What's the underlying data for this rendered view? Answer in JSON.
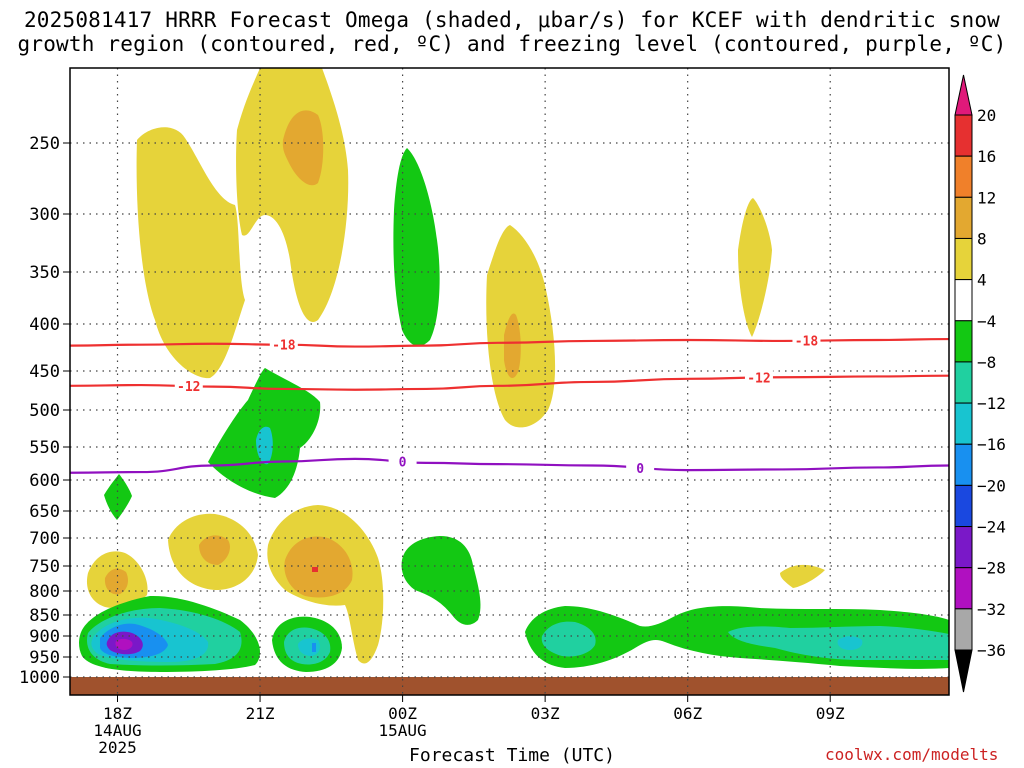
{
  "title": {
    "line1": "2025081417 HRRR Forecast Omega (shaded, μbar/s) for KCEF with dendritic snow",
    "line2": "growth region (contoured, red, ºC) and freezing level (contoured, purple, ºC)"
  },
  "credit": "coolwx.com/modelts",
  "chart_data": {
    "type": "heatmap",
    "xlabel": "Forecast Time (UTC)",
    "x_ticks": [
      {
        "label": "18Z",
        "sub1": "14AUG",
        "sub2": "2025",
        "hour": 0
      },
      {
        "label": "21Z",
        "sub1": "",
        "sub2": "",
        "hour": 3
      },
      {
        "label": "00Z",
        "sub1": "15AUG",
        "sub2": "",
        "hour": 6
      },
      {
        "label": "03Z",
        "sub1": "",
        "sub2": "",
        "hour": 9
      },
      {
        "label": "06Z",
        "sub1": "",
        "sub2": "",
        "hour": 12
      },
      {
        "label": "09Z",
        "sub1": "",
        "sub2": "",
        "hour": 15
      }
    ],
    "y_ticks": [
      250,
      300,
      350,
      400,
      450,
      500,
      550,
      600,
      650,
      700,
      750,
      800,
      850,
      900,
      950,
      1000
    ],
    "ylim": [
      200,
      1010
    ],
    "xlim": [
      -1,
      17.5
    ],
    "colorbar": {
      "labels": [
        "20",
        "16",
        "12",
        "8",
        "4",
        "−4",
        "−8",
        "−12",
        "−16",
        "−20",
        "−24",
        "−28",
        "−32",
        "−36"
      ],
      "colors": [
        "#e0197a",
        "#e63030",
        "#f0802a",
        "#e3a830",
        "#e6d33a",
        "#ffffff",
        "#13c813",
        "#20d0a0",
        "#18c4d0",
        "#1890f0",
        "#1a48e0",
        "#7a18c8",
        "#b010c0",
        "#a8a8a8",
        "#000000"
      ]
    },
    "contours": [
      {
        "label": "-18",
        "color": "#ee3030",
        "pressure": [
          423,
          422,
          421,
          422,
          424,
          423,
          420,
          418,
          417,
          418,
          417,
          416
        ]
      },
      {
        "label": "-12",
        "color": "#ee3030",
        "pressure": [
          469,
          468,
          470,
          473,
          474,
          473,
          469,
          464,
          460,
          458,
          457,
          456
        ]
      },
      {
        "label": "0",
        "color": "#9010c0",
        "pressure": [
          589,
          588,
          578,
          572,
          568,
          574,
          576,
          578,
          585,
          584,
          581,
          578
        ]
      }
    ],
    "contour_hours": [
      -1,
      0.5,
      2,
      3.5,
      5,
      6.5,
      8,
      10,
      12,
      14,
      16,
      17.5
    ],
    "omega_regions": [
      {
        "level": "4",
        "color": "#e6d33a"
      },
      {
        "level": "8",
        "color": "#e3a830"
      },
      {
        "level": "-4",
        "color": "#13c813"
      },
      {
        "level": "-8",
        "color": "#20d0a0"
      },
      {
        "level": "-12",
        "color": "#18c4d0"
      },
      {
        "level": "-20",
        "color": "#1890f0"
      },
      {
        "level": "-28",
        "color": "#7a18c8"
      }
    ],
    "terrain_color": "#a0522d"
  }
}
